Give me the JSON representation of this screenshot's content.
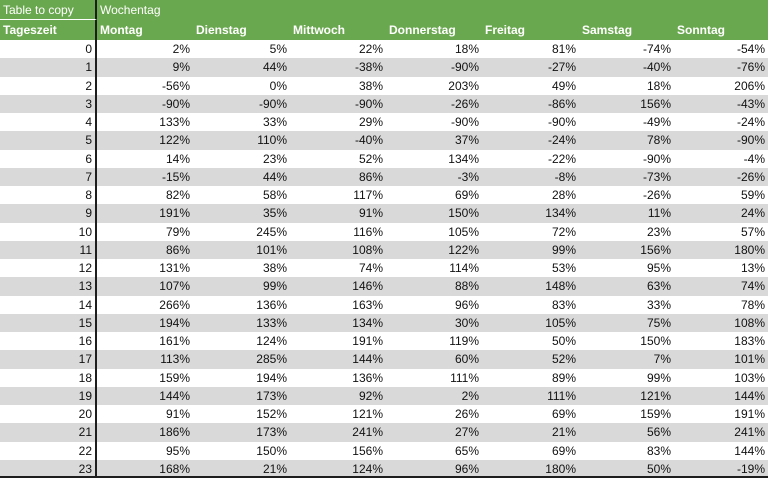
{
  "sheet": {
    "corner_label": "Table to copy",
    "group_header": "Wochentag",
    "row_header": "Tageszeit",
    "columns": [
      "Montag",
      "Dienstag",
      "Mittwoch",
      "Donnerstag",
      "Freitag",
      "Samstag",
      "Sonntag"
    ],
    "rows": [
      {
        "hour": "0",
        "values": [
          "2%",
          "5%",
          "22%",
          "18%",
          "81%",
          "-74%",
          "-54%"
        ]
      },
      {
        "hour": "1",
        "values": [
          "9%",
          "44%",
          "-38%",
          "-90%",
          "-27%",
          "-40%",
          "-76%"
        ]
      },
      {
        "hour": "2",
        "values": [
          "-56%",
          "0%",
          "38%",
          "203%",
          "49%",
          "18%",
          "206%"
        ]
      },
      {
        "hour": "3",
        "values": [
          "-90%",
          "-90%",
          "-90%",
          "-26%",
          "-86%",
          "156%",
          "-43%"
        ]
      },
      {
        "hour": "4",
        "values": [
          "133%",
          "33%",
          "29%",
          "-90%",
          "-90%",
          "-49%",
          "-24%"
        ]
      },
      {
        "hour": "5",
        "values": [
          "122%",
          "110%",
          "-40%",
          "37%",
          "-24%",
          "78%",
          "-90%"
        ]
      },
      {
        "hour": "6",
        "values": [
          "14%",
          "23%",
          "52%",
          "134%",
          "-22%",
          "-90%",
          "-4%"
        ]
      },
      {
        "hour": "7",
        "values": [
          "-15%",
          "44%",
          "86%",
          "-3%",
          "-8%",
          "-73%",
          "-26%"
        ]
      },
      {
        "hour": "8",
        "values": [
          "82%",
          "58%",
          "117%",
          "69%",
          "28%",
          "-26%",
          "59%"
        ]
      },
      {
        "hour": "9",
        "values": [
          "191%",
          "35%",
          "91%",
          "150%",
          "134%",
          "11%",
          "24%"
        ]
      },
      {
        "hour": "10",
        "values": [
          "79%",
          "245%",
          "116%",
          "105%",
          "72%",
          "23%",
          "57%"
        ]
      },
      {
        "hour": "11",
        "values": [
          "86%",
          "101%",
          "108%",
          "122%",
          "99%",
          "156%",
          "180%"
        ]
      },
      {
        "hour": "12",
        "values": [
          "131%",
          "38%",
          "74%",
          "114%",
          "53%",
          "95%",
          "13%"
        ]
      },
      {
        "hour": "13",
        "values": [
          "107%",
          "99%",
          "146%",
          "88%",
          "148%",
          "63%",
          "74%"
        ]
      },
      {
        "hour": "14",
        "values": [
          "266%",
          "136%",
          "163%",
          "96%",
          "83%",
          "33%",
          "78%"
        ]
      },
      {
        "hour": "15",
        "values": [
          "194%",
          "133%",
          "134%",
          "30%",
          "105%",
          "75%",
          "108%"
        ]
      },
      {
        "hour": "16",
        "values": [
          "161%",
          "124%",
          "191%",
          "119%",
          "50%",
          "150%",
          "183%"
        ]
      },
      {
        "hour": "17",
        "values": [
          "113%",
          "285%",
          "144%",
          "60%",
          "52%",
          "7%",
          "101%"
        ]
      },
      {
        "hour": "18",
        "values": [
          "159%",
          "194%",
          "136%",
          "111%",
          "89%",
          "99%",
          "103%"
        ]
      },
      {
        "hour": "19",
        "values": [
          "144%",
          "173%",
          "92%",
          "2%",
          "111%",
          "121%",
          "144%"
        ]
      },
      {
        "hour": "20",
        "values": [
          "91%",
          "152%",
          "121%",
          "26%",
          "69%",
          "159%",
          "191%"
        ]
      },
      {
        "hour": "21",
        "values": [
          "186%",
          "173%",
          "241%",
          "27%",
          "21%",
          "56%",
          "241%"
        ]
      },
      {
        "hour": "22",
        "values": [
          "95%",
          "150%",
          "156%",
          "65%",
          "69%",
          "83%",
          "144%"
        ]
      },
      {
        "hour": "23",
        "values": [
          "168%",
          "21%",
          "124%",
          "96%",
          "180%",
          "50%",
          "-19%"
        ]
      }
    ]
  },
  "colors": {
    "header_green": "#6aa84f",
    "stripe_gray": "#d9d9d9",
    "border_dark": "#1e1e1e"
  }
}
